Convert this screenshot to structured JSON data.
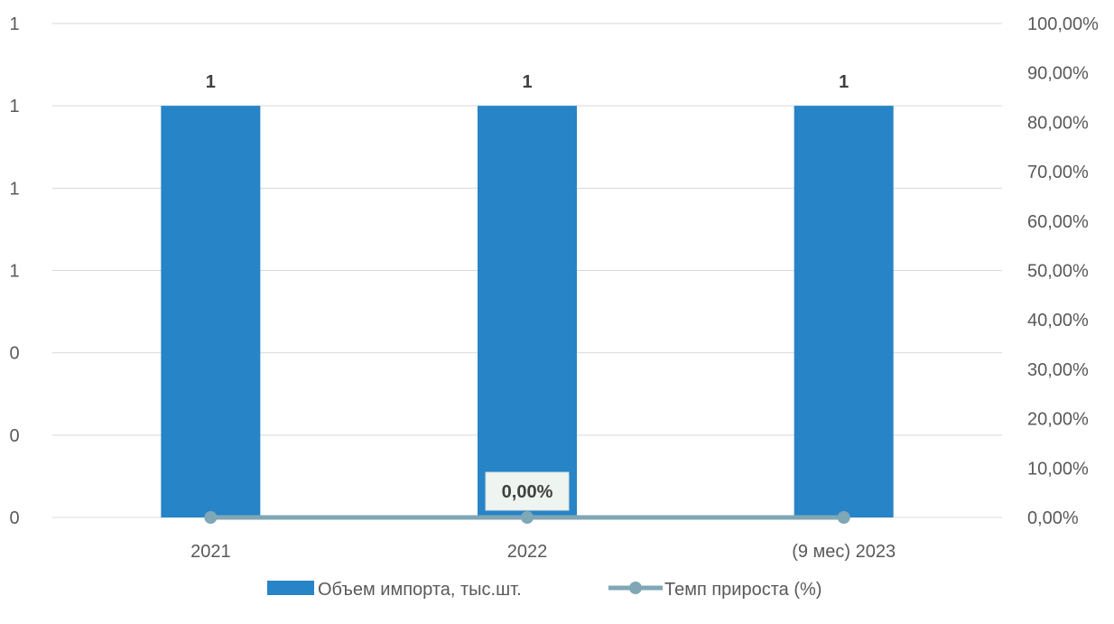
{
  "chart_data": {
    "type": "bar",
    "categories": [
      "2021",
      "2022",
      "(9 мес) 2023"
    ],
    "series": [
      {
        "name": "Объем импорта, тыс.шт.",
        "type": "bar",
        "axis": "left",
        "color": "#2784C7",
        "values": [
          1,
          1,
          1
        ],
        "data_labels": [
          "1",
          "1",
          "1"
        ]
      },
      {
        "name": "Темп прироста (%)",
        "type": "line",
        "axis": "right",
        "color": "#7FA7B5",
        "values": [
          0,
          0,
          0
        ],
        "data_labels": [
          "",
          "0,00%",
          ""
        ]
      }
    ],
    "y_left": {
      "ylim": [
        0,
        1.2
      ],
      "tick_labels": [
        "0",
        "0",
        "0",
        "1",
        "1",
        "1",
        "1"
      ]
    },
    "y_right": {
      "ylim": [
        0,
        1
      ],
      "tick_labels": [
        "0,00%",
        "10,00%",
        "20,00%",
        "30,00%",
        "40,00%",
        "50,00%",
        "60,00%",
        "70,00%",
        "80,00%",
        "90,00%",
        "100,00%"
      ]
    },
    "grid": true,
    "legend": "bottom"
  }
}
